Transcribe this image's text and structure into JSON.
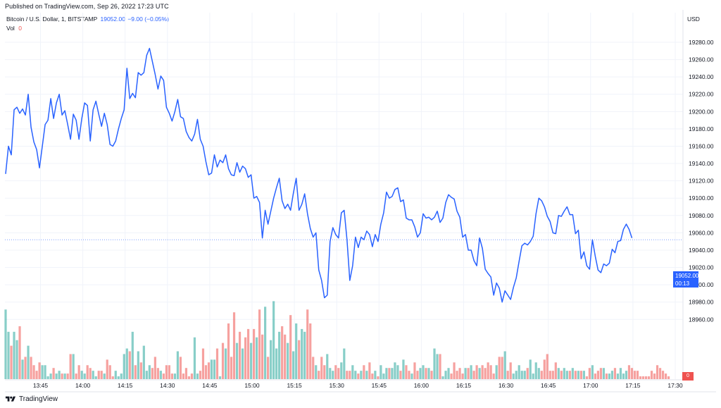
{
  "header": {
    "published": "Published on TradingView.com, Sep 26, 2022 17:23 UTC",
    "symbol": "Bitcoin / U.S. Dollar, 1, BITSTAMP",
    "last_value": "19052.00",
    "change": "−9.00 (−0.05%)",
    "vol_label": "Vol",
    "vol_value": "0",
    "currency": "USD"
  },
  "price_tag": {
    "price": "19052.00",
    "countdown": "00:13"
  },
  "volume_tag": {
    "value": "0"
  },
  "footer": {
    "brand": "TradingView"
  },
  "colors": {
    "line": "#2962ff",
    "volume_up": "#26a69a",
    "volume_down": "#ef5350",
    "grid": "#f0f3fa"
  },
  "chart_data": {
    "type": "line",
    "symbol": "Bitcoin / U.S. Dollar, 1, BITSTAMP",
    "x_ticks": [
      "13:45",
      "14:00",
      "14:15",
      "14:30",
      "14:45",
      "15:00",
      "15:15",
      "15:30",
      "15:45",
      "16:00",
      "16:15",
      "16:30",
      "16:45",
      "17:00",
      "17:15",
      "17:30"
    ],
    "y_ticks": [
      "19280.00",
      "19260.00",
      "19240.00",
      "19220.00",
      "19200.00",
      "19180.00",
      "19160.00",
      "19140.00",
      "19120.00",
      "19100.00",
      "19080.00",
      "19060.00",
      "19040.00",
      "19020.00",
      "19000.00",
      "18980.00",
      "18960.00"
    ],
    "ylim": [
      18955,
      19300
    ],
    "x_start": "13:36",
    "grid": true,
    "current_price": 19052,
    "price_series": [
      19128,
      19160,
      19150,
      19202,
      19205,
      19198,
      19203,
      19196,
      19220,
      19182,
      19165,
      19156,
      19135,
      19160,
      19185,
      19190,
      19215,
      19192,
      19210,
      19220,
      19196,
      19201,
      19185,
      19168,
      19197,
      19190,
      19168,
      19192,
      19210,
      19207,
      19166,
      19202,
      19212,
      19197,
      19183,
      19198,
      19185,
      19162,
      19160,
      19166,
      19180,
      19192,
      19202,
      19250,
      19215,
      19221,
      19216,
      19245,
      19242,
      19245,
      19265,
      19273,
      19258,
      19243,
      19226,
      19241,
      19236,
      19205,
      19198,
      19189,
      19200,
      19214,
      19194,
      19192,
      19177,
      19170,
      19166,
      19174,
      19191,
      19168,
      19160,
      19142,
      19127,
      19129,
      19150,
      19136,
      19144,
      19141,
      19150,
      19134,
      19127,
      19126,
      19141,
      19130,
      19137,
      19134,
      19124,
      19127,
      19100,
      19102,
      19095,
      19054,
      19086,
      19070,
      19085,
      19100,
      19112,
      19123,
      19097,
      19088,
      19093,
      19086,
      19106,
      19123,
      19086,
      19093,
      19105,
      19082,
      19065,
      19055,
      19060,
      19017,
      19005,
      18985,
      18988,
      19050,
      19066,
      19058,
      19054,
      19083,
      19086,
      19052,
      19005,
      19022,
      19055,
      19043,
      19055,
      19052,
      19062,
      19058,
      19044,
      19058,
      19050,
      19070,
      19083,
      19107,
      19100,
      19102,
      19110,
      19112,
      19096,
      19098,
      19077,
      19075,
      19075,
      19067,
      19055,
      19060,
      19082,
      19077,
      19078,
      19075,
      19078,
      19085,
      19072,
      19077,
      19095,
      19104,
      19101,
      19099,
      19085,
      19078,
      19055,
      19058,
      19040,
      19040,
      19028,
      19022,
      19054,
      19042,
      19018,
      19013,
      19009,
      18988,
      19002,
      18996,
      18980,
      18993,
      18988,
      18983,
      18997,
      19008,
      19027,
      19045,
      19048,
      19046,
      19050,
      19056,
      19082,
      19100,
      19097,
      19090,
      19079,
      19073,
      19060,
      19059,
      19080,
      19079,
      19085,
      19090,
      19081,
      19081,
      19059,
      19063,
      19030,
      19038,
      19022,
      19018,
      19052,
      19033,
      19017,
      19014,
      19024,
      19022,
      19025,
      19041,
      19037,
      19050,
      19051,
      19064,
      19070,
      19064,
      19054
    ],
    "volume_series": [
      25,
      17,
      12,
      17,
      14,
      19,
      7,
      8,
      12,
      8,
      5,
      3,
      6,
      5,
      5,
      1,
      2,
      4,
      2,
      3,
      2,
      2,
      2,
      9,
      9,
      2,
      5,
      3,
      2,
      5,
      4,
      3,
      1,
      3,
      3,
      2,
      7,
      5,
      1,
      3,
      1,
      2,
      9,
      11,
      10,
      17,
      5,
      10,
      6,
      12,
      3,
      5,
      4,
      8,
      4,
      3,
      2,
      5,
      5,
      2,
      2,
      10,
      8,
      2,
      4,
      1,
      2,
      15,
      2,
      3,
      11,
      5,
      6,
      7,
      7,
      11,
      1,
      13,
      11,
      20,
      8,
      24,
      13,
      17,
      11,
      15,
      18,
      13,
      18,
      15,
      25,
      16,
      26,
      8,
      14,
      28,
      11,
      17,
      19,
      16,
      13,
      23,
      10,
      20,
      14,
      18,
      17,
      25,
      20,
      8,
      5,
      3,
      8,
      5,
      9,
      4,
      3,
      5,
      4,
      6,
      11,
      3,
      3,
      5,
      3,
      2,
      3,
      5,
      3,
      6,
      2,
      3,
      1,
      5,
      2,
      4,
      4,
      4,
      6,
      5,
      3,
      7,
      5,
      3,
      2,
      6,
      3,
      4,
      5,
      4,
      4,
      3,
      11,
      9,
      9,
      1,
      3,
      4,
      2,
      6,
      3,
      4,
      2,
      4,
      4,
      5,
      3,
      5,
      4,
      5,
      4,
      6,
      5,
      2,
      5,
      8,
      8,
      10,
      3,
      6,
      2,
      3,
      5,
      3,
      3,
      4,
      7,
      2,
      6,
      4,
      3,
      7,
      9,
      3,
      3,
      6,
      4,
      3,
      4,
      3,
      3,
      4,
      3,
      3,
      3,
      3,
      1,
      4,
      5,
      2,
      3,
      4,
      4,
      2,
      2,
      3,
      4,
      2,
      4,
      2,
      3,
      5,
      4,
      3,
      3,
      1,
      1,
      1,
      1,
      3,
      2,
      5,
      4,
      3,
      2,
      1
    ],
    "volume_scale_note": ""
  }
}
